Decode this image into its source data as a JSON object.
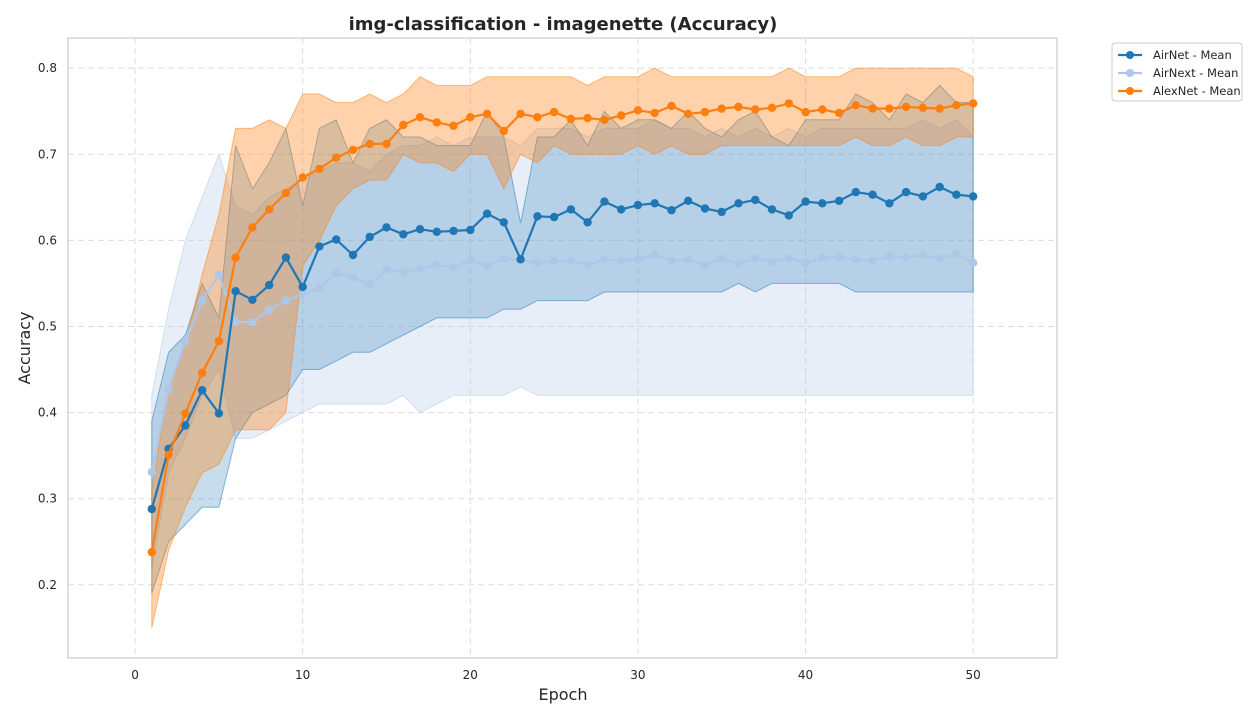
{
  "chart_data": {
    "type": "line",
    "title": "img-classification - imagenette (Accuracy)",
    "xlabel": "Epoch",
    "ylabel": "Accuracy",
    "xlim": [
      -4,
      55
    ],
    "ylim": [
      0.115,
      0.835
    ],
    "xticks": [
      0,
      10,
      20,
      30,
      40,
      50
    ],
    "yticks": [
      0.2,
      0.3,
      0.4,
      0.5,
      0.6,
      0.7,
      0.8
    ],
    "xtick_labels": [
      "0",
      "10",
      "20",
      "30",
      "40",
      "50"
    ],
    "ytick_labels": [
      "0.2",
      "0.3",
      "0.4",
      "0.5",
      "0.6",
      "0.7",
      "0.8"
    ],
    "grid": true,
    "legend_position": "outside top-right",
    "x": [
      1,
      2,
      3,
      4,
      5,
      6,
      7,
      8,
      9,
      10,
      11,
      12,
      13,
      14,
      15,
      16,
      17,
      18,
      19,
      20,
      21,
      22,
      23,
      24,
      25,
      26,
      27,
      28,
      29,
      30,
      31,
      32,
      33,
      34,
      35,
      36,
      37,
      38,
      39,
      40,
      41,
      42,
      43,
      44,
      45,
      46,
      47,
      48,
      49,
      50
    ],
    "series": [
      {
        "name": "AirNext - Mean",
        "color": "#aec7e8",
        "band_opacity": 0.3,
        "values": [
          0.331,
          0.427,
          0.483,
          0.53,
          0.56,
          0.505,
          0.505,
          0.519,
          0.53,
          0.537,
          0.545,
          0.562,
          0.557,
          0.549,
          0.566,
          0.563,
          0.567,
          0.571,
          0.569,
          0.577,
          0.57,
          0.579,
          0.577,
          0.574,
          0.576,
          0.576,
          0.571,
          0.578,
          0.576,
          0.578,
          0.583,
          0.576,
          0.578,
          0.571,
          0.579,
          0.573,
          0.579,
          0.575,
          0.579,
          0.574,
          0.58,
          0.581,
          0.578,
          0.576,
          0.582,
          0.58,
          0.583,
          0.579,
          0.584,
          0.574
        ],
        "lower": [
          0.22,
          0.33,
          0.37,
          0.42,
          0.45,
          0.37,
          0.37,
          0.38,
          0.39,
          0.4,
          0.41,
          0.41,
          0.41,
          0.41,
          0.41,
          0.42,
          0.4,
          0.41,
          0.42,
          0.42,
          0.42,
          0.42,
          0.43,
          0.42,
          0.42,
          0.42,
          0.42,
          0.42,
          0.42,
          0.42,
          0.42,
          0.42,
          0.42,
          0.42,
          0.42,
          0.42,
          0.42,
          0.42,
          0.42,
          0.42,
          0.42,
          0.42,
          0.42,
          0.42,
          0.42,
          0.42,
          0.42,
          0.42,
          0.42,
          0.42
        ],
        "upper": [
          0.42,
          0.52,
          0.6,
          0.65,
          0.7,
          0.64,
          0.63,
          0.65,
          0.66,
          0.67,
          0.68,
          0.69,
          0.69,
          0.68,
          0.7,
          0.71,
          0.71,
          0.72,
          0.71,
          0.72,
          0.72,
          0.72,
          0.71,
          0.73,
          0.73,
          0.73,
          0.72,
          0.73,
          0.73,
          0.73,
          0.74,
          0.73,
          0.73,
          0.72,
          0.73,
          0.72,
          0.73,
          0.72,
          0.73,
          0.72,
          0.73,
          0.73,
          0.73,
          0.73,
          0.73,
          0.73,
          0.74,
          0.73,
          0.74,
          0.72
        ]
      },
      {
        "name": "AirNet - Mean",
        "color": "#1f77b4",
        "band_opacity": 0.25,
        "values": [
          0.288,
          0.358,
          0.385,
          0.426,
          0.399,
          0.541,
          0.531,
          0.548,
          0.58,
          0.546,
          0.593,
          0.601,
          0.583,
          0.604,
          0.615,
          0.607,
          0.613,
          0.61,
          0.611,
          0.612,
          0.631,
          0.621,
          0.578,
          0.628,
          0.627,
          0.636,
          0.621,
          0.645,
          0.636,
          0.641,
          0.643,
          0.635,
          0.646,
          0.637,
          0.633,
          0.643,
          0.647,
          0.636,
          0.629,
          0.645,
          0.643,
          0.646,
          0.656,
          0.653,
          0.643,
          0.656,
          0.651,
          0.662,
          0.653,
          0.651
        ],
        "lower": [
          0.19,
          0.25,
          0.27,
          0.29,
          0.29,
          0.37,
          0.4,
          0.41,
          0.42,
          0.45,
          0.45,
          0.46,
          0.47,
          0.47,
          0.48,
          0.49,
          0.5,
          0.51,
          0.51,
          0.51,
          0.51,
          0.52,
          0.52,
          0.53,
          0.53,
          0.53,
          0.53,
          0.54,
          0.54,
          0.54,
          0.54,
          0.54,
          0.54,
          0.54,
          0.54,
          0.55,
          0.54,
          0.55,
          0.55,
          0.55,
          0.55,
          0.55,
          0.54,
          0.54,
          0.54,
          0.54,
          0.54,
          0.54,
          0.54,
          0.54
        ],
        "upper": [
          0.39,
          0.47,
          0.49,
          0.55,
          0.51,
          0.71,
          0.66,
          0.69,
          0.73,
          0.64,
          0.73,
          0.74,
          0.69,
          0.73,
          0.74,
          0.72,
          0.72,
          0.71,
          0.71,
          0.71,
          0.75,
          0.72,
          0.62,
          0.72,
          0.72,
          0.74,
          0.71,
          0.75,
          0.73,
          0.74,
          0.74,
          0.73,
          0.75,
          0.73,
          0.72,
          0.74,
          0.75,
          0.72,
          0.71,
          0.74,
          0.74,
          0.74,
          0.77,
          0.76,
          0.74,
          0.77,
          0.76,
          0.78,
          0.76,
          0.76
        ]
      },
      {
        "name": "AlexNet - Mean",
        "color": "#ff7f0e",
        "band_opacity": 0.35,
        "values": [
          0.238,
          0.351,
          0.399,
          0.446,
          0.483,
          0.58,
          0.615,
          0.636,
          0.655,
          0.673,
          0.683,
          0.696,
          0.705,
          0.712,
          0.712,
          0.734,
          0.743,
          0.737,
          0.733,
          0.743,
          0.747,
          0.727,
          0.747,
          0.743,
          0.749,
          0.741,
          0.742,
          0.74,
          0.745,
          0.751,
          0.748,
          0.756,
          0.747,
          0.749,
          0.753,
          0.755,
          0.752,
          0.754,
          0.759,
          0.749,
          0.752,
          0.748,
          0.757,
          0.753,
          0.753,
          0.755,
          0.754,
          0.753,
          0.757,
          0.759
        ],
        "lower": [
          0.15,
          0.24,
          0.29,
          0.33,
          0.34,
          0.38,
          0.38,
          0.38,
          0.4,
          0.57,
          0.6,
          0.64,
          0.66,
          0.67,
          0.67,
          0.7,
          0.69,
          0.69,
          0.68,
          0.7,
          0.7,
          0.66,
          0.7,
          0.69,
          0.71,
          0.7,
          0.7,
          0.7,
          0.7,
          0.71,
          0.7,
          0.71,
          0.7,
          0.7,
          0.71,
          0.71,
          0.71,
          0.71,
          0.71,
          0.71,
          0.71,
          0.71,
          0.72,
          0.71,
          0.71,
          0.72,
          0.71,
          0.71,
          0.72,
          0.72
        ],
        "upper": [
          0.31,
          0.43,
          0.48,
          0.56,
          0.63,
          0.73,
          0.73,
          0.74,
          0.73,
          0.77,
          0.77,
          0.76,
          0.76,
          0.77,
          0.76,
          0.77,
          0.79,
          0.78,
          0.78,
          0.78,
          0.79,
          0.79,
          0.79,
          0.79,
          0.79,
          0.79,
          0.78,
          0.79,
          0.79,
          0.79,
          0.8,
          0.79,
          0.79,
          0.79,
          0.79,
          0.79,
          0.79,
          0.79,
          0.8,
          0.79,
          0.79,
          0.79,
          0.8,
          0.8,
          0.8,
          0.8,
          0.8,
          0.8,
          0.8,
          0.79
        ]
      }
    ],
    "legend_order": [
      "AirNet - Mean",
      "AirNext - Mean",
      "AlexNet - Mean"
    ]
  }
}
